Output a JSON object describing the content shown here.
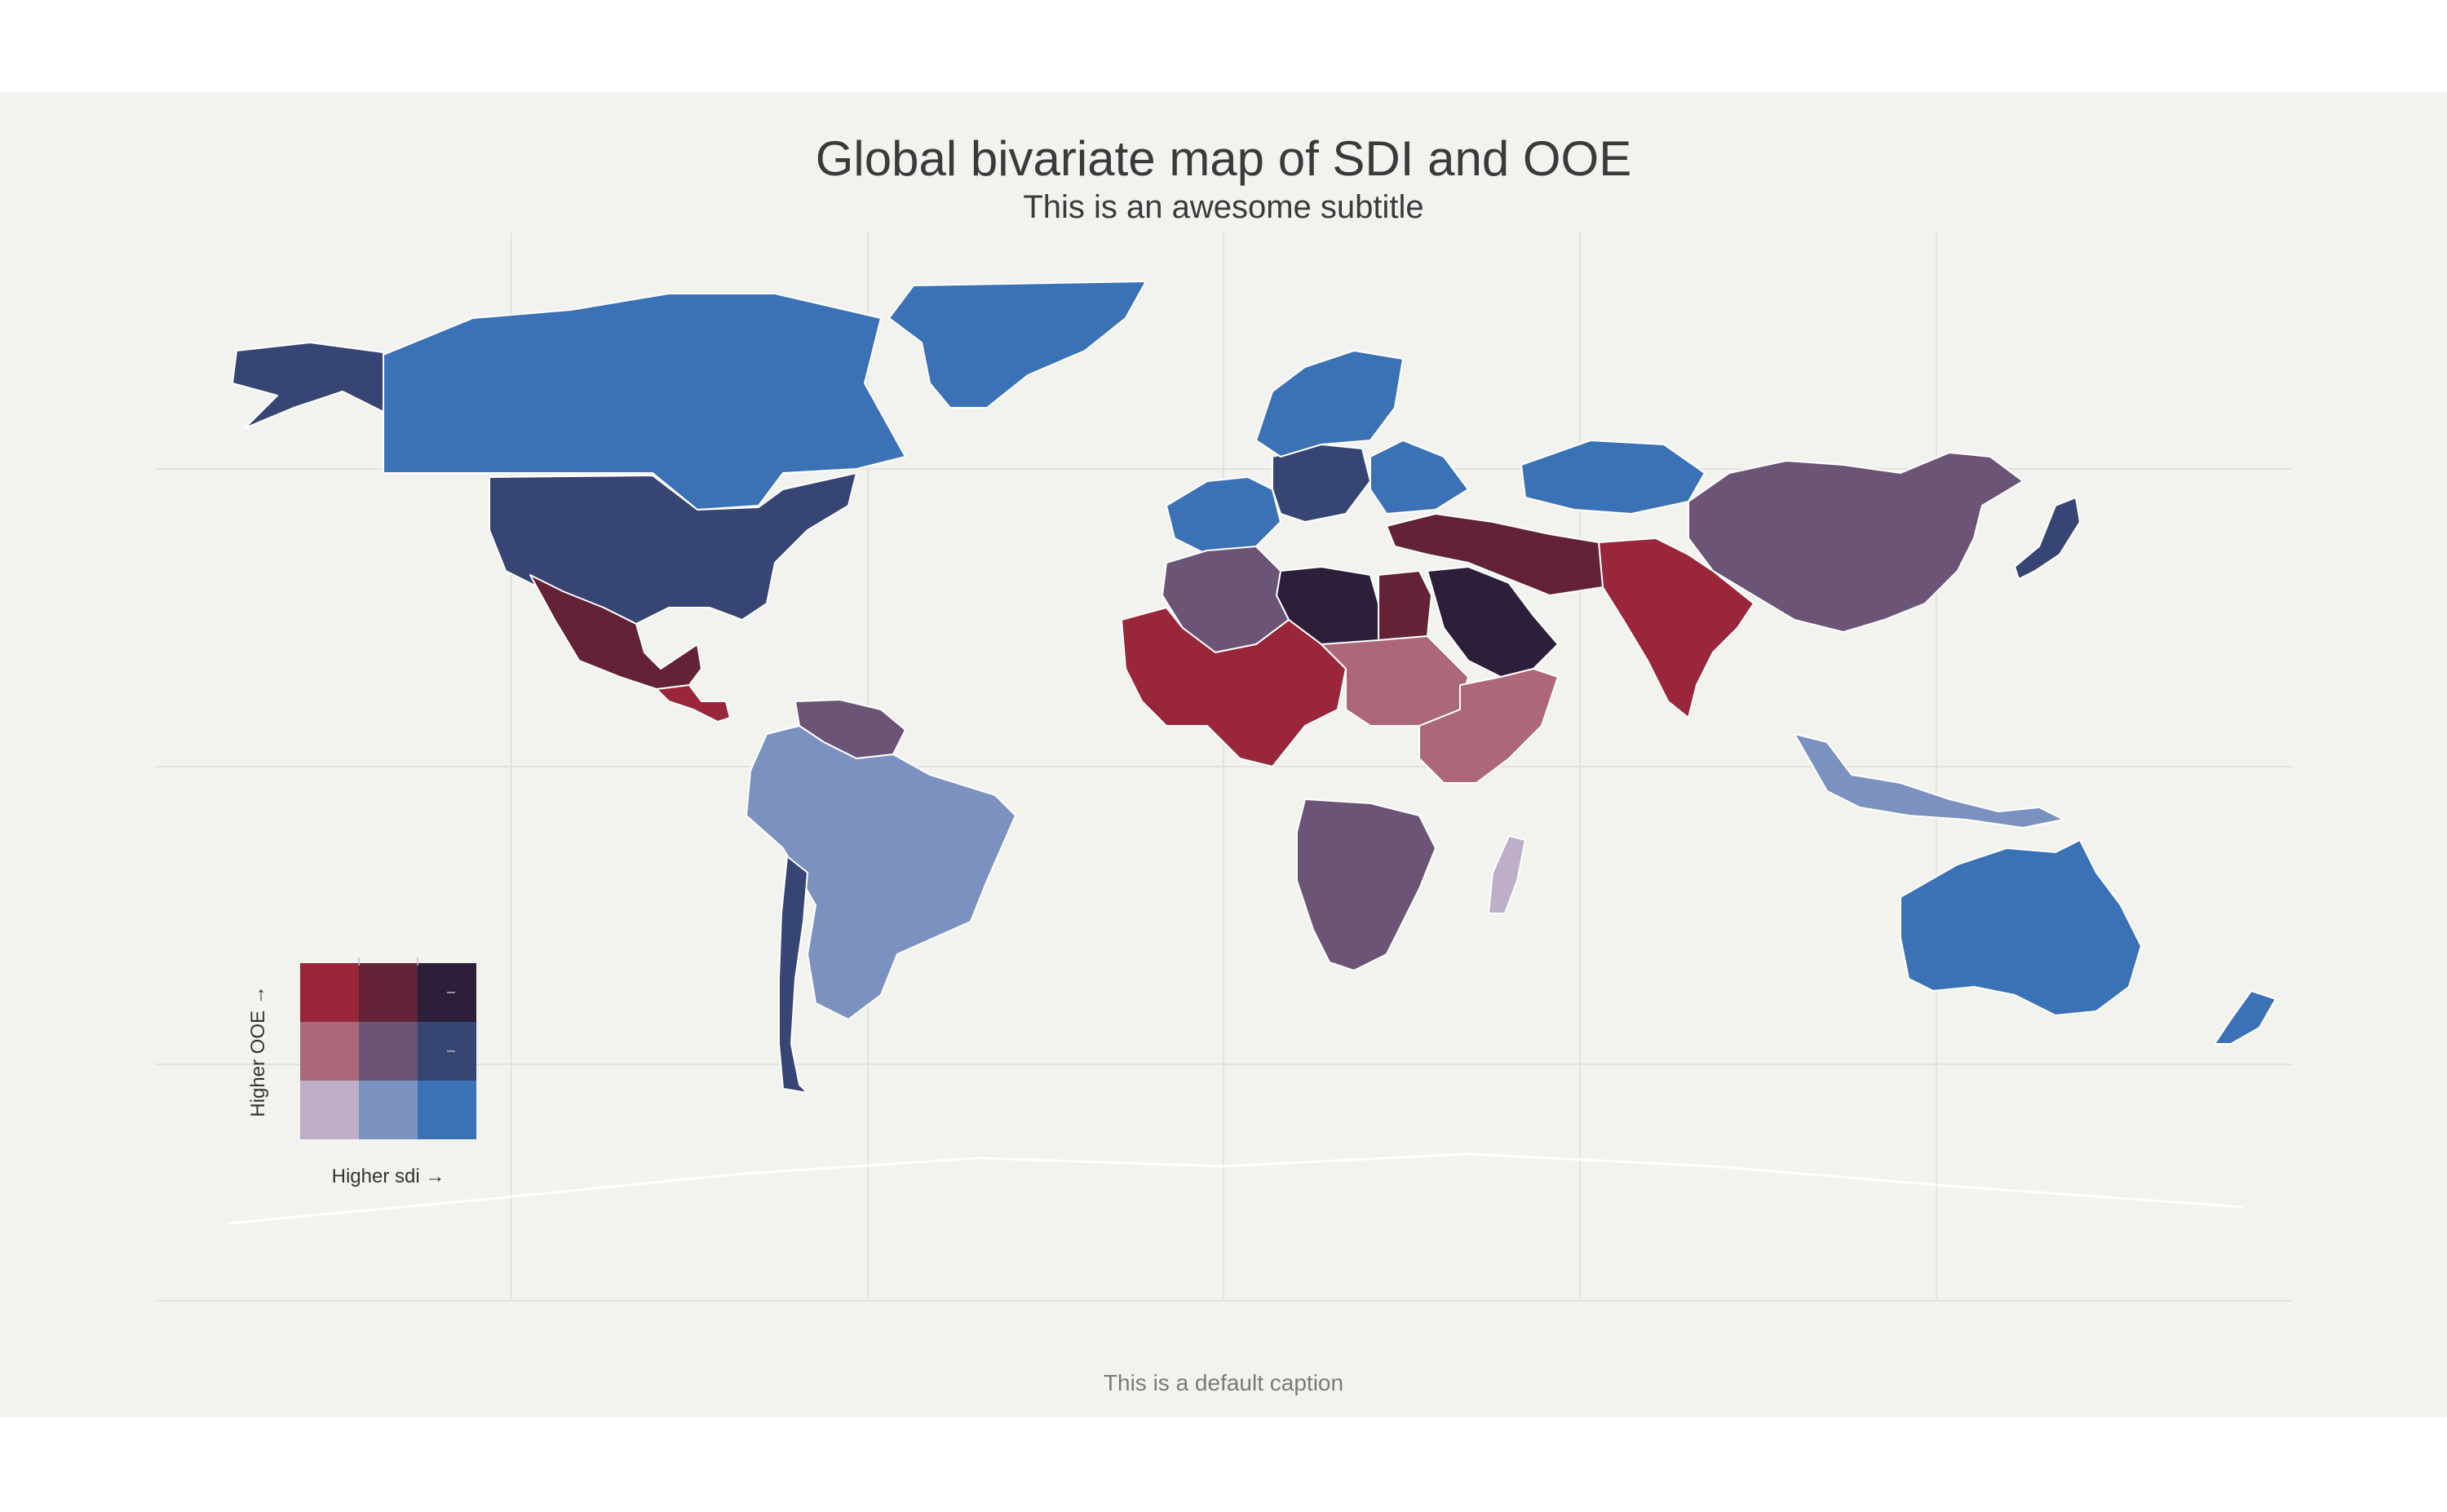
{
  "title": "Global bivariate map of SDI and OOE",
  "subtitle": "This is an awesome subtitle",
  "caption": "This is a default caption",
  "legend": {
    "x_label": "Higher sdi →",
    "y_label": "Higher OOE →",
    "colors": [
      [
        "#bfaec8",
        "#7b91c0",
        "#3b72b5"
      ],
      [
        "#ac6778",
        "#6b5476",
        "#374575"
      ],
      [
        "#9a263a",
        "#642236",
        "#2d1e39"
      ]
    ]
  },
  "palette": {
    "panel_bg": "#f2f2ef",
    "no_data": "#f2f2ef",
    "border": "#ffffff"
  },
  "regions": [
    {
      "name": "Greenland",
      "sdi": 3,
      "ooe": 1
    },
    {
      "name": "Canada",
      "sdi": 3,
      "ooe": 1
    },
    {
      "name": "Alaska",
      "sdi": 3,
      "ooe": 2
    },
    {
      "name": "United States",
      "sdi": 3,
      "ooe": 2
    },
    {
      "name": "Mexico",
      "sdi": 2,
      "ooe": 3
    },
    {
      "name": "Central America",
      "sdi": 1,
      "ooe": 3
    },
    {
      "name": "Venezuela",
      "sdi": 2,
      "ooe": 2
    },
    {
      "name": "Brazil",
      "sdi": 2,
      "ooe": 1
    },
    {
      "name": "Bolivia",
      "sdi": 2,
      "ooe": 2
    },
    {
      "name": "Chile",
      "sdi": 3,
      "ooe": 2
    },
    {
      "name": "Western Europe",
      "sdi": 3,
      "ooe": 1
    },
    {
      "name": "Central Europe",
      "sdi": 3,
      "ooe": 2
    },
    {
      "name": "Scandinavia",
      "sdi": 3,
      "ooe": 1
    },
    {
      "name": "Russia",
      "sdi": 3,
      "ooe": 1
    },
    {
      "name": "Kazakhstan",
      "sdi": 3,
      "ooe": 1
    },
    {
      "name": "China",
      "sdi": 2,
      "ooe": 2
    },
    {
      "name": "Japan",
      "sdi": 3,
      "ooe": 2
    },
    {
      "name": "India",
      "sdi": 1,
      "ooe": 3
    },
    {
      "name": "Iran",
      "sdi": 2,
      "ooe": 3
    },
    {
      "name": "Saudi Arabia",
      "sdi": 3,
      "ooe": 3
    },
    {
      "name": "Libya",
      "sdi": 3,
      "ooe": 3
    },
    {
      "name": "Algeria",
      "sdi": 2,
      "ooe": 2
    },
    {
      "name": "Egypt",
      "sdi": 2,
      "ooe": 3
    },
    {
      "name": "West Africa",
      "sdi": 1,
      "ooe": 3
    },
    {
      "name": "Sudan",
      "sdi": 1,
      "ooe": 2
    },
    {
      "name": "East Africa",
      "sdi": 1,
      "ooe": 2
    },
    {
      "name": "Southern Africa",
      "sdi": 2,
      "ooe": 2
    },
    {
      "name": "Madagascar",
      "sdi": 1,
      "ooe": 1
    },
    {
      "name": "Australia",
      "sdi": 3,
      "ooe": 1
    },
    {
      "name": "New Zealand",
      "sdi": 3,
      "ooe": 1
    },
    {
      "name": "Indonesia",
      "sdi": 2,
      "ooe": 1
    }
  ]
}
